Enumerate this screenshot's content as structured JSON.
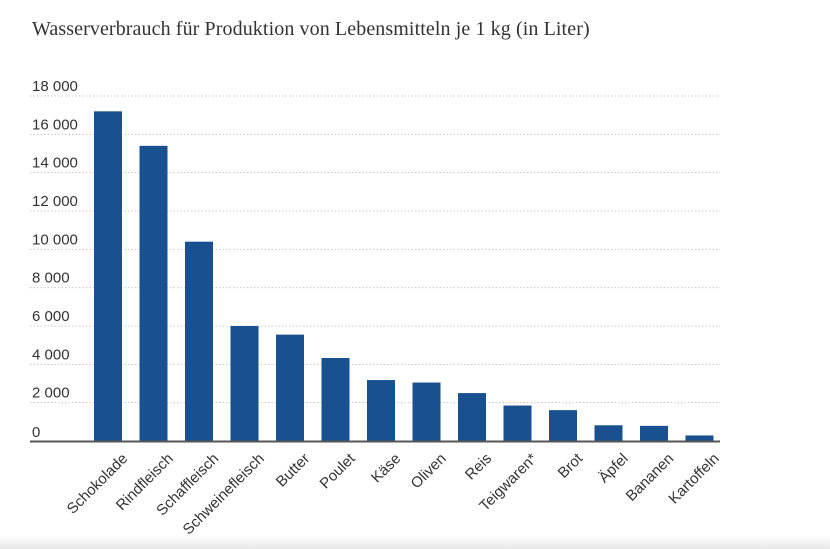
{
  "chart_data": {
    "type": "bar",
    "title": "Wasserverbrauch für Produktion von Lebensmitteln je 1 kg (in Liter)",
    "xlabel": "",
    "ylabel": "",
    "categories": [
      "Schokolade",
      "Rindfleisch",
      "Schaffleisch",
      "Schweinefleisch",
      "Butter",
      "Poulet",
      "Käse",
      "Oliven",
      "Reis",
      "Teigwaren*",
      "Brot",
      "Äpfel",
      "Bananen",
      "Kartoffeln"
    ],
    "values": [
      17200,
      15400,
      10400,
      6000,
      5550,
      4330,
      3180,
      3050,
      2500,
      1850,
      1610,
      820,
      790,
      290
    ],
    "ylim": [
      0,
      18000
    ],
    "yticks": [
      0,
      2000,
      4000,
      6000,
      8000,
      10000,
      12000,
      14000,
      16000,
      18000
    ],
    "ytick_labels": [
      "0",
      "2 000",
      "4 000",
      "6 000",
      "8 000",
      "10 000",
      "12 000",
      "14 000",
      "16 000",
      "18 000"
    ],
    "grid": "horizontal dotted",
    "bar_color": "#19508f"
  }
}
